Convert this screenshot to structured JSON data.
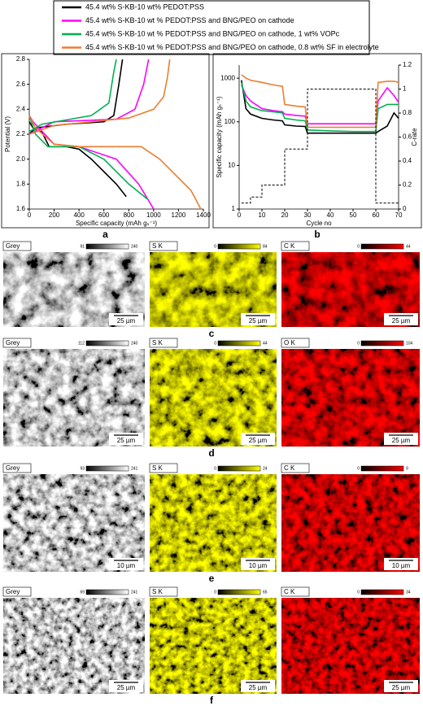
{
  "legend_layout": "top",
  "chart_data": [
    {
      "type": "line",
      "panel": "a",
      "xlabel": "Specific capacity (mAh gₛ⁻¹)",
      "ylabel": "Potential (V)",
      "xlim": [
        0,
        1400
      ],
      "xticks": [
        0,
        200,
        400,
        600,
        800,
        1000,
        1200,
        1400
      ],
      "ylim": [
        1.6,
        2.8
      ],
      "yticks": [
        1.6,
        1.8,
        {
          "value": 2,
          "label": "2.0"
        },
        2.2,
        2.4,
        2.6,
        2.8
      ],
      "series": [
        {
          "name": "45.4 wt% S-KB-10 wt% PEDOT:PSS",
          "color": "#000000",
          "x": [
            0,
            30,
            100,
            160,
            300,
            400,
            500,
            600,
            700,
            780,
            null,
            0,
            50,
            300,
            600,
            680,
            720,
            750
          ],
          "values": [
            2.3,
            2.25,
            2.22,
            2.1,
            2.1,
            2.08,
            2.0,
            1.9,
            1.8,
            1.7,
            null,
            2.2,
            2.25,
            2.28,
            2.3,
            2.35,
            2.6,
            2.8
          ]
        },
        {
          "name": "45.4 wt% S-KB-10 wt % PEDOT:PSS and BNG/PEO on cathode",
          "color": "#ff00ff",
          "x": [
            0,
            30,
            200,
            400,
            700,
            880,
            1000,
            null,
            0,
            200,
            700,
            850,
            920,
            960
          ],
          "values": [
            2.35,
            2.3,
            2.12,
            2.1,
            2.0,
            1.8,
            1.6,
            null,
            2.2,
            2.3,
            2.32,
            2.4,
            2.6,
            2.8
          ]
        },
        {
          "name": "45.4 wt% S-KB-10 wt % PEDOT:PSS and BNG/PEO on cathode, 1 wt% VOPc",
          "color": "#00b050",
          "x": [
            0,
            50,
            150,
            400,
            600,
            800,
            950,
            null,
            0,
            100,
            500,
            640,
            680,
            700
          ],
          "values": [
            2.35,
            2.2,
            2.1,
            2.1,
            2.0,
            1.8,
            1.68,
            null,
            2.22,
            2.28,
            2.35,
            2.45,
            2.7,
            2.8
          ]
        },
        {
          "name": "45.4 wt% S-KB-10 wt % PEDOT:PSS and BNG/PEO on cathode, 0.8 wt% SF in electrolyte",
          "color": "#ed7d31",
          "x": [
            0,
            50,
            200,
            400,
            900,
            1050,
            1200,
            1300,
            1380,
            null,
            0,
            200,
            800,
            1000,
            1080,
            1110,
            1130
          ],
          "values": [
            2.35,
            2.25,
            2.12,
            2.1,
            2.1,
            2.0,
            1.85,
            1.75,
            1.6,
            null,
            2.2,
            2.27,
            2.33,
            2.4,
            2.5,
            2.65,
            2.8
          ]
        }
      ]
    },
    {
      "type": "line",
      "panel": "b",
      "xlabel": "Cycle no",
      "ylabel": "Specific capacity (mAh gₛ⁻¹)",
      "y2label": "C-rate",
      "log_y": true,
      "xlim": [
        0,
        70
      ],
      "xticks": [
        0,
        10,
        20,
        30,
        40,
        50,
        60,
        70
      ],
      "ylim": [
        1,
        2000
      ],
      "yticks": [
        1,
        10,
        100,
        1000
      ],
      "y2lim": [
        0,
        1.2
      ],
      "y2ticks": [
        0,
        0.2,
        0.4,
        0.6,
        0.8,
        1,
        1.2
      ],
      "series": [
        {
          "color": "#000000",
          "x": [
            1,
            3,
            5,
            10,
            15,
            19,
            20,
            25,
            29,
            30,
            40,
            50,
            59,
            60,
            61,
            65,
            68,
            70
          ],
          "values": [
            900,
            200,
            150,
            120,
            110,
            105,
            85,
            80,
            78,
            55,
            55,
            55,
            55,
            55,
            60,
            80,
            160,
            120
          ]
        },
        {
          "color": "#ff00ff",
          "x": [
            1,
            3,
            5,
            10,
            15,
            19,
            20,
            25,
            29,
            30,
            40,
            50,
            59,
            60,
            61,
            65,
            68,
            70
          ],
          "values": [
            700,
            400,
            300,
            200,
            180,
            170,
            150,
            140,
            135,
            90,
            90,
            90,
            90,
            90,
            300,
            600,
            400,
            280
          ]
        },
        {
          "color": "#00b050",
          "x": [
            1,
            3,
            5,
            10,
            15,
            19,
            20,
            25,
            29,
            30,
            40,
            50,
            59,
            60,
            61,
            65,
            68,
            70
          ],
          "values": [
            800,
            300,
            220,
            180,
            170,
            160,
            120,
            110,
            105,
            65,
            62,
            60,
            60,
            60,
            200,
            250,
            250,
            250
          ]
        },
        {
          "color": "#ed7d31",
          "x": [
            1,
            3,
            5,
            10,
            15,
            19,
            20,
            25,
            29,
            30,
            40,
            50,
            59,
            60,
            61,
            65,
            68,
            70
          ],
          "values": [
            1200,
            1000,
            900,
            800,
            700,
            650,
            250,
            230,
            220,
            75,
            75,
            75,
            75,
            75,
            800,
            850,
            850,
            800
          ]
        },
        {
          "color": "#000000",
          "dashed": true,
          "axis": "y2",
          "x": [
            1,
            5,
            5,
            10,
            10,
            20,
            20,
            30,
            30,
            60,
            60,
            70
          ],
          "values": [
            0.05,
            0.05,
            0.1,
            0.1,
            0.2,
            0.2,
            0.5,
            0.5,
            1,
            1,
            0.05,
            0.05
          ]
        }
      ]
    }
  ],
  "micrographs": [
    {
      "panel": "c",
      "images": [
        {
          "channel": "Grey",
          "min": 91,
          "max": 240,
          "scale": "25 µm",
          "color": "#ffffff"
        },
        {
          "channel": "S K",
          "min": 0,
          "max": 84,
          "scale": "25 µm",
          "color": "#ffff00"
        },
        {
          "channel": "C K",
          "min": 0,
          "max": 44,
          "scale": "25 µm",
          "color": "#ff0000"
        }
      ]
    },
    {
      "panel": "d",
      "images": [
        {
          "channel": "Grey",
          "min": 112,
          "max": 240,
          "scale": "25 µm",
          "color": "#ffffff"
        },
        {
          "channel": "S K",
          "min": 0,
          "max": 44,
          "scale": "25 µm",
          "color": "#ffff00"
        },
        {
          "channel": "O K",
          "min": 0,
          "max": 104,
          "scale": "25 µm",
          "color": "#ff0000"
        }
      ]
    },
    {
      "panel": "e",
      "images": [
        {
          "channel": "Grey",
          "min": 93,
          "max": 241,
          "scale": "10 µm",
          "color": "#ffffff"
        },
        {
          "channel": "S K",
          "min": 0,
          "max": 24,
          "scale": "10 µm",
          "color": "#ffff00"
        },
        {
          "channel": "C K",
          "min": 0,
          "max": 9,
          "scale": "10 µm",
          "color": "#ff0000"
        }
      ]
    },
    {
      "panel": "f",
      "images": [
        {
          "channel": "Grey",
          "min": 69,
          "max": 241,
          "scale": "25 µm",
          "color": "#ffffff"
        },
        {
          "channel": "S K",
          "min": 0,
          "max": 65,
          "scale": "25 µm",
          "color": "#ffff00"
        },
        {
          "channel": "C K",
          "min": 0,
          "max": 34,
          "scale": "25 µm",
          "color": "#ff0000"
        }
      ]
    }
  ]
}
